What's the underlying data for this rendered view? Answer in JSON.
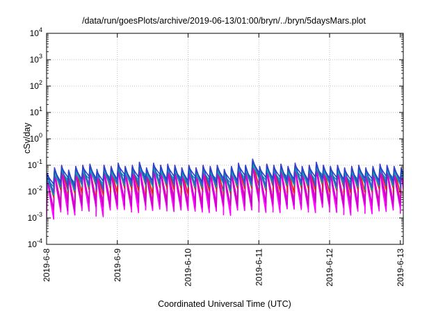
{
  "chart_data": {
    "type": "line",
    "title": "/data/run/goesPlots/archive/2019-06-13/01:00/bryn/../bryn/5daysMars.plot",
    "xlabel": "Coordinated Universal Time (UTC)",
    "ylabel": "cSv/day",
    "x_range": [
      "2019-06-08T00:00",
      "2019-06-13T01:00"
    ],
    "x_ticks": [
      "2019-6-8",
      "2019-6-9",
      "2019-6-10",
      "2019-6-11",
      "2019-6-12",
      "2019-6-13"
    ],
    "yscale": "log",
    "ylim": [
      0.0001,
      10000
    ],
    "y_ticks": [
      {
        "base": "10",
        "exp": "-4"
      },
      {
        "base": "10",
        "exp": "-3"
      },
      {
        "base": "10",
        "exp": "-2"
      },
      {
        "base": "10",
        "exp": "-1"
      },
      {
        "base": "10",
        "exp": "0"
      },
      {
        "base": "10",
        "exp": "1"
      },
      {
        "base": "10",
        "exp": "2"
      },
      {
        "base": "10",
        "exp": "3"
      },
      {
        "base": "10",
        "exp": "4"
      }
    ],
    "grid": true,
    "cycles_per_day": 10,
    "cycle_peaks": [
      0.05,
      0.08,
      0.1,
      0.065,
      0.09,
      0.1,
      0.11,
      0.07,
      0.1,
      0.09,
      0.12,
      0.09,
      0.1,
      0.13,
      0.08,
      0.12,
      0.1,
      0.11,
      0.1,
      0.08,
      0.1,
      0.08,
      0.1,
      0.09,
      0.1,
      0.07,
      0.09,
      0.12,
      0.1,
      0.17,
      0.09,
      0.11,
      0.1,
      0.11,
      0.09,
      0.12,
      0.09,
      0.1,
      0.13,
      0.1,
      0.09,
      0.1,
      0.08,
      0.09,
      0.1,
      0.08,
      0.09,
      0.11,
      0.1,
      0.09,
      0.08,
      0.1,
      0.09,
      0.11,
      0.08,
      0.1,
      0.09,
      0.1,
      0.08,
      0.1,
      0.09,
      0.1,
      0.08,
      0.09,
      0.1,
      0.07,
      0.09,
      0.1,
      0.08,
      0.1,
      0.09,
      0.1,
      0.08,
      0.09,
      0.1,
      0.09,
      0.1,
      0.11,
      0.09,
      0.1,
      0.09,
      0.1,
      0.1,
      0.09,
      0.1,
      0.09,
      0.12,
      0.1,
      0.09,
      0.1,
      0.1,
      0.08,
      0.09,
      0.1,
      0.09,
      0.08,
      0.1,
      0.09,
      0.08,
      0.1,
      0.08,
      0.07,
      0.06
    ],
    "series": [
      {
        "color": "#e4179c",
        "peak_factor": 0.9,
        "trough_factor": 0.045
      },
      {
        "color": "#ff00ff",
        "peak_factor": 0.75,
        "trough_factor": 0.03
      },
      {
        "color": "#ff00ff",
        "peak_factor": 0.6,
        "trough_factor": 0.02
      },
      {
        "color": "#cc00cc",
        "peak_factor": 0.55,
        "trough_factor": 0.035
      },
      {
        "color": "#e02020",
        "peak_factor": 1.0,
        "trough_factor": 0.12
      },
      {
        "color": "#009e9e",
        "peak_factor": 0.7,
        "trough_factor": 0.18
      },
      {
        "color": "#00b0b0",
        "peak_factor": 0.6,
        "trough_factor": 0.28
      },
      {
        "color": "#3a4fd8",
        "peak_factor": 1.0,
        "trough_factor": 0.2
      },
      {
        "color": "#2a42c8",
        "peak_factor": 0.85,
        "trough_factor": 0.32
      }
    ]
  }
}
